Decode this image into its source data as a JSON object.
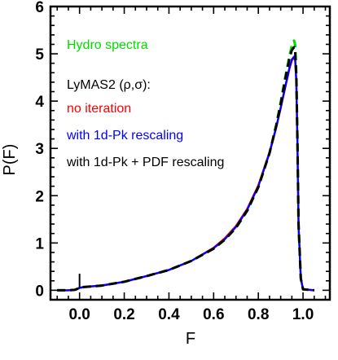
{
  "chart_data": {
    "type": "line",
    "title": "",
    "xlabel": "F",
    "ylabel": "P(F)",
    "xlim": [
      -0.13,
      1.12
    ],
    "ylim": [
      -0.2,
      6.0
    ],
    "x_ticks": [
      0.0,
      0.2,
      0.4,
      0.6,
      0.8,
      1.0
    ],
    "x_tick_labels": [
      "0.0",
      "0.2",
      "0.4",
      "0.6",
      "0.8",
      "1.0"
    ],
    "y_ticks": [
      0,
      1,
      2,
      3,
      4,
      5,
      6
    ],
    "y_tick_labels": [
      "0",
      "1",
      "2",
      "3",
      "4",
      "5",
      "6"
    ],
    "legend_position": "top-left",
    "legend_heading": "LyMAS2 (ρ,σ):",
    "grid": false,
    "x": [
      -0.1,
      -0.05,
      -0.02,
      -0.01,
      0.0,
      0.01,
      0.02,
      0.05,
      0.1,
      0.2,
      0.3,
      0.4,
      0.5,
      0.6,
      0.65,
      0.7,
      0.75,
      0.8,
      0.85,
      0.88,
      0.9,
      0.92,
      0.94,
      0.95,
      0.96,
      0.965,
      0.97,
      0.975,
      0.98,
      0.99,
      1.0,
      1.05
    ],
    "series": [
      {
        "name": "Hydro spectra",
        "color": "#00dd00",
        "dash": "dashed",
        "values": [
          0,
          0,
          0.01,
          0.03,
          0.05,
          0.06,
          0.07,
          0.08,
          0.1,
          0.18,
          0.3,
          0.43,
          0.62,
          0.88,
          1.07,
          1.32,
          1.68,
          2.18,
          2.9,
          3.5,
          3.98,
          4.5,
          4.98,
          5.18,
          5.28,
          5.18,
          4.6,
          3.2,
          1.4,
          0.25,
          0.02,
          0
        ]
      },
      {
        "name": "no iteration",
        "color": "#ff0000",
        "dash": "solid",
        "values": [
          0,
          0,
          0.01,
          0.03,
          0.05,
          0.06,
          0.07,
          0.08,
          0.1,
          0.18,
          0.3,
          0.43,
          0.62,
          0.9,
          1.1,
          1.36,
          1.72,
          2.22,
          2.92,
          3.45,
          3.85,
          4.28,
          4.7,
          4.86,
          4.92,
          4.85,
          4.4,
          3.1,
          1.35,
          0.25,
          0.02,
          0
        ]
      },
      {
        "name": "with 1d-Pk rescaling",
        "color": "#0000ff",
        "dash": "solid",
        "values": [
          0,
          0,
          0.01,
          0.03,
          0.05,
          0.06,
          0.07,
          0.08,
          0.1,
          0.18,
          0.3,
          0.43,
          0.62,
          0.89,
          1.08,
          1.34,
          1.7,
          2.2,
          2.9,
          3.44,
          3.86,
          4.3,
          4.72,
          4.88,
          4.94,
          4.88,
          4.42,
          3.12,
          1.36,
          0.25,
          0.02,
          0
        ]
      },
      {
        "name": "with 1d-Pk + PDF rescaling",
        "color": "#000000",
        "dash": "dashed",
        "values": [
          0,
          0,
          0.01,
          0.03,
          0.05,
          0.06,
          0.07,
          0.08,
          0.1,
          0.18,
          0.3,
          0.43,
          0.62,
          0.88,
          1.07,
          1.32,
          1.68,
          2.18,
          2.9,
          3.48,
          3.94,
          4.46,
          4.92,
          5.08,
          5.14,
          5.05,
          4.5,
          3.15,
          1.38,
          0.25,
          0.02,
          0
        ]
      }
    ],
    "spike": {
      "x": 0.0,
      "from": 0.05,
      "to": 0.35,
      "color": "#000000"
    }
  }
}
